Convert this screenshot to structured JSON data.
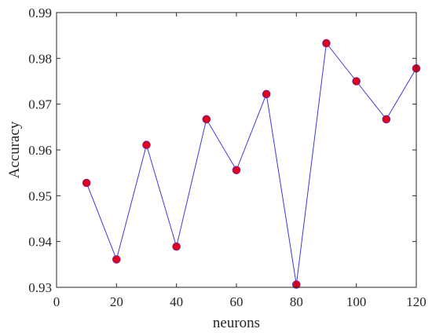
{
  "chart_data": {
    "type": "line",
    "title": "",
    "xlabel": "neurons",
    "ylabel": "Accuracy",
    "xlim": [
      0,
      120
    ],
    "ylim": [
      0.93,
      0.99
    ],
    "xticks": [
      0,
      20,
      40,
      60,
      80,
      100,
      120
    ],
    "xtick_labels": [
      "0",
      "20",
      "40",
      "60",
      "80",
      "100",
      "120"
    ],
    "yticks": [
      0.93,
      0.94,
      0.95,
      0.96,
      0.97,
      0.98,
      0.99
    ],
    "ytick_labels": [
      "0.93",
      "0.94",
      "0.95",
      "0.96",
      "0.97",
      "0.98",
      "0.99"
    ],
    "grid": false,
    "series": [
      {
        "x": [
          10,
          20,
          30,
          40,
          50,
          60,
          70,
          80,
          90,
          100,
          110,
          120
        ],
        "y": [
          0.9528,
          0.9361,
          0.9611,
          0.9389,
          0.9667,
          0.9556,
          0.9722,
          0.9306,
          0.9833,
          0.975,
          0.9667,
          0.9778
        ],
        "line_color": "#3a3ad8",
        "marker_color": "#e0001b"
      }
    ]
  }
}
